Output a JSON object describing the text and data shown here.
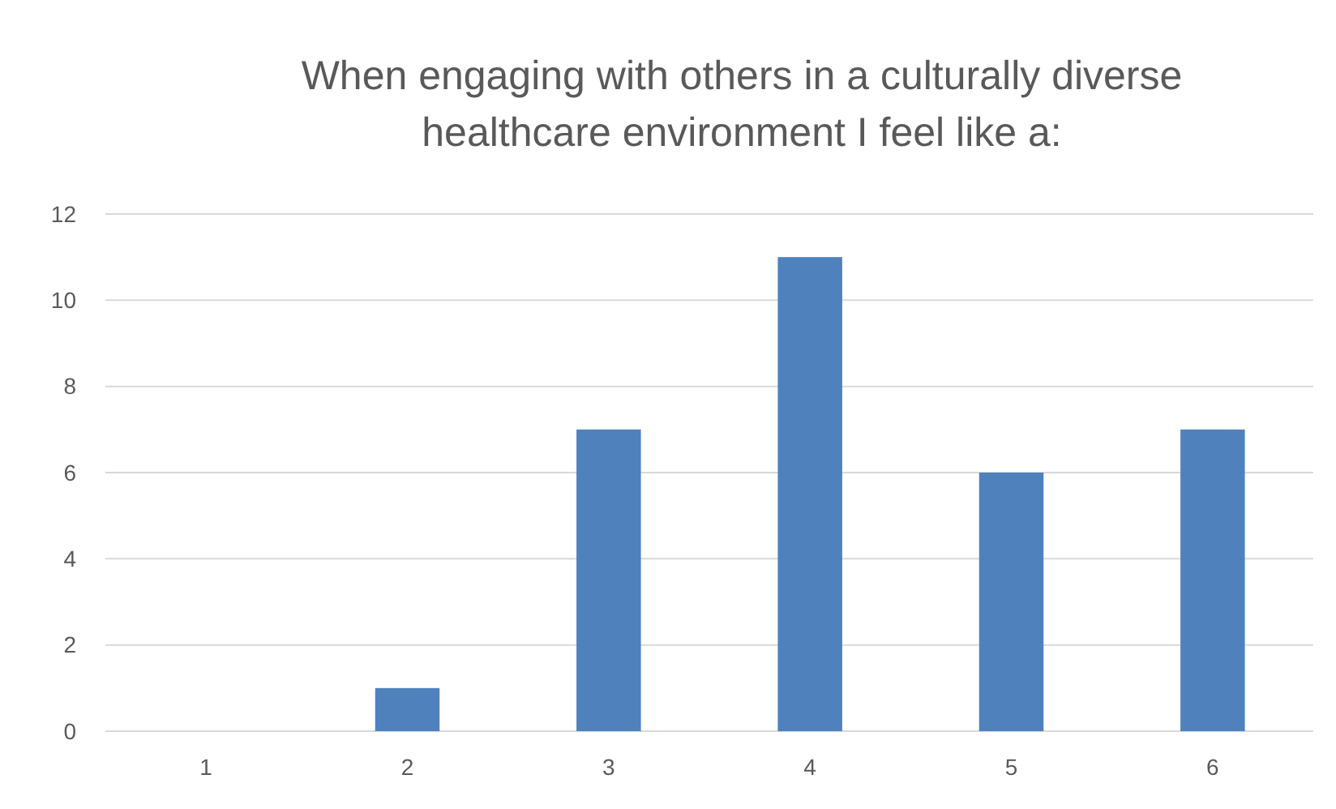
{
  "chart_data": {
    "type": "bar",
    "title": "When engaging with others in a culturally diverse healthcare environment I feel like a:",
    "categories": [
      "1",
      "2",
      "3",
      "4",
      "5",
      "6"
    ],
    "values": [
      0,
      1,
      7,
      11,
      6,
      7
    ],
    "color": "#4f81bd",
    "ylim": [
      0,
      12
    ],
    "yticks": [
      0,
      2,
      4,
      6,
      8,
      10,
      12
    ],
    "grid": "y"
  }
}
